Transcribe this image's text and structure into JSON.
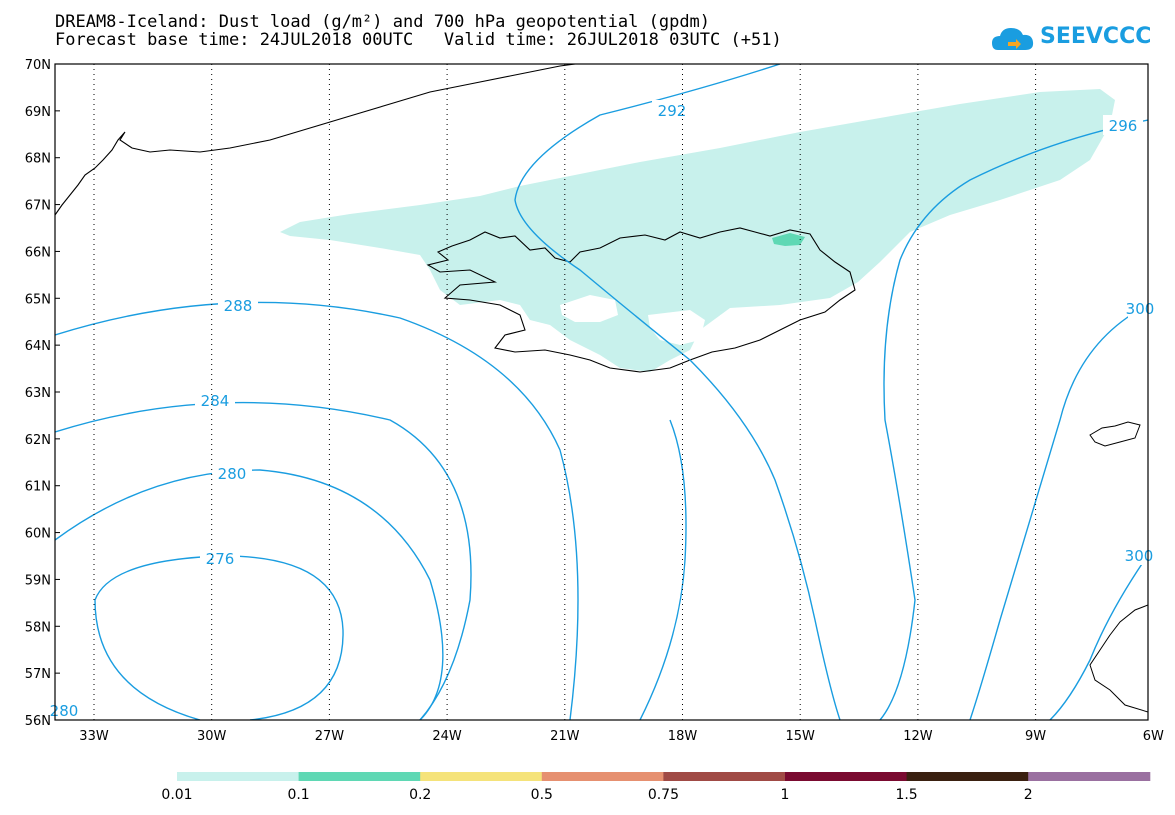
{
  "title": {
    "line1": "DREAM8-Iceland: Dust load (g/m²) and 700 hPa geopotential (gpdm)",
    "line2": "Forecast base time: 24JUL2018 00UTC   Valid time: 26JUL2018 03UTC (+51)"
  },
  "logo": {
    "text": "SEEVCCC",
    "icon": "cloud-arrow-icon",
    "color": "#1a9de0"
  },
  "map": {
    "lat_labels": [
      "70N",
      "69N",
      "68N",
      "67N",
      "66N",
      "65N",
      "64N",
      "63N",
      "62N",
      "61N",
      "60N",
      "59N",
      "58N",
      "57N",
      "56N"
    ],
    "lon_labels": [
      "33W",
      "30W",
      "27W",
      "24W",
      "21W",
      "18W",
      "15W",
      "12W",
      "9W",
      "6W"
    ],
    "contour_color": "#1a9de0",
    "dust_color": "#c8f1ec",
    "dust_high_color": "#5fd8b4",
    "coast_color": "#000000",
    "contour_labels": [
      "292",
      "296",
      "288",
      "284",
      "280",
      "276",
      "300",
      "300",
      "280"
    ]
  },
  "colorbar": {
    "colors": [
      "#c8f1ec",
      "#5fd8b4",
      "#f5e37a",
      "#e69070",
      "#a04a45",
      "#7a0a30",
      "#3a2010",
      "#9a70a0"
    ],
    "labels": [
      "0.01",
      "0.1",
      "0.2",
      "0.5",
      "0.75",
      "1",
      "1.5",
      "2"
    ]
  }
}
